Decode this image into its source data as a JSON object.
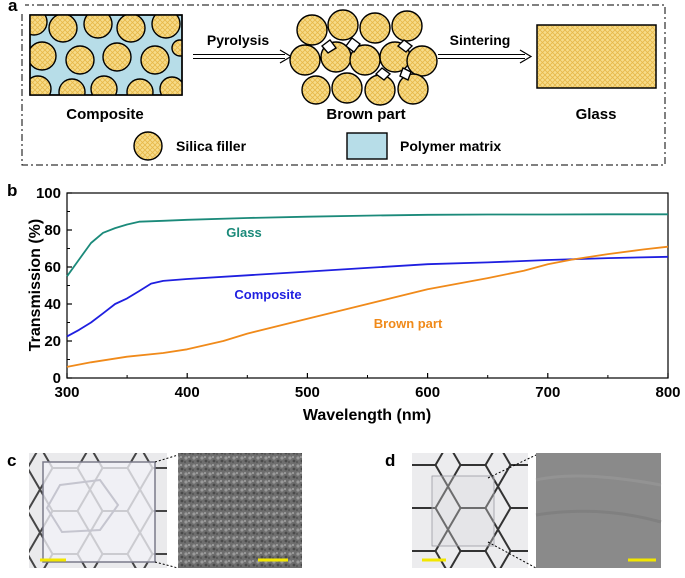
{
  "panel_a": {
    "label": "a",
    "stage_composite": "Composite",
    "stage_brown": "Brown part",
    "stage_glass": "Glass",
    "step_pyrolysis": "Pyrolysis",
    "step_sintering": "Sintering",
    "legend_silica": "Silica filler",
    "legend_polymer": "Polymer matrix"
  },
  "panel_c": {
    "label": "c"
  },
  "panel_d": {
    "label": "d"
  },
  "colors": {
    "glass": "#1b8a7a",
    "composite": "#1f1fe0",
    "brown": "#f08a1a",
    "polymer": "#b7dde8",
    "silica": "#f7dc8a",
    "scale_bar": "#f2e600"
  },
  "chart_data": {
    "type": "line",
    "panel_label": "b",
    "xlabel": "Wavelength (nm)",
    "ylabel": "Transmission (%)",
    "xlim": [
      300,
      800
    ],
    "ylim": [
      0,
      100
    ],
    "xticks": [
      300,
      400,
      500,
      600,
      700,
      800
    ],
    "yticks": [
      0,
      20,
      40,
      60,
      80,
      100
    ],
    "series": [
      {
        "name": "Glass",
        "color": "#1b8a7a",
        "x": [
          300,
          310,
          320,
          330,
          340,
          350,
          360,
          380,
          400,
          450,
          500,
          550,
          600,
          650,
          700,
          750,
          800
        ],
        "values": [
          55,
          64,
          73,
          78.5,
          81,
          83,
          84.5,
          85,
          85.5,
          86.5,
          87.2,
          87.8,
          88.2,
          88.4,
          88.4,
          88.5,
          88.5
        ]
      },
      {
        "name": "Composite",
        "color": "#1f1fe0",
        "x": [
          300,
          310,
          320,
          330,
          340,
          350,
          360,
          370,
          380,
          400,
          450,
          500,
          550,
          600,
          650,
          700,
          750,
          800
        ],
        "values": [
          22.5,
          26,
          30,
          35,
          40,
          43,
          47,
          51,
          52.5,
          53.5,
          55.5,
          57.5,
          59.5,
          61.5,
          62.5,
          63.8,
          64.8,
          65.5
        ]
      },
      {
        "name": "Brown part",
        "color": "#f08a1a",
        "x": [
          300,
          320,
          350,
          380,
          400,
          430,
          450,
          500,
          550,
          600,
          650,
          680,
          700,
          720,
          750,
          780,
          800
        ],
        "values": [
          6,
          8.5,
          11.5,
          13.5,
          15.5,
          20,
          24,
          32,
          40,
          48,
          54,
          58,
          61.5,
          64,
          67,
          69.5,
          71
        ]
      }
    ],
    "annotations": [
      {
        "text": "Glass",
        "series": "Glass"
      },
      {
        "text": "Composite",
        "series": "Composite"
      },
      {
        "text": "Brown part",
        "series": "Brown part"
      }
    ]
  }
}
